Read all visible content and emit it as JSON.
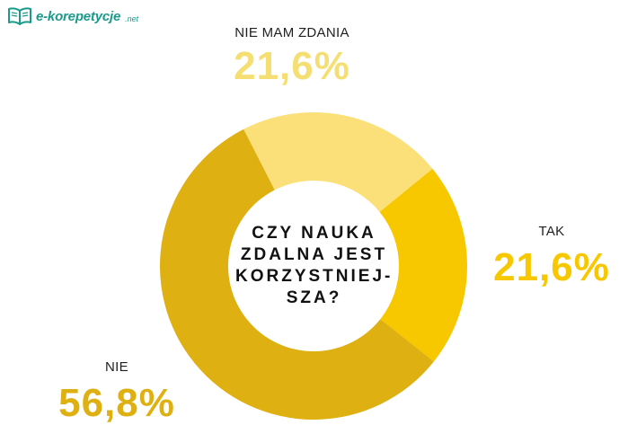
{
  "brand": {
    "name": "e-korepetycje",
    "suffix": ".net",
    "icon": "open-book-icon",
    "color": "#1a9a8a"
  },
  "center_question": {
    "lines": [
      "CZY NAUKA",
      "ZDALNA JEST",
      "KORZYSTNIEJ-",
      "SZA?"
    ]
  },
  "chart_data": {
    "type": "pie",
    "donut": true,
    "title": "CZY NAUKA ZDALNA JEST KORZYSTNIEJSZA?",
    "slices": [
      {
        "label": "TAK",
        "value": 21.6,
        "display": "21,6%",
        "color": "#f7c800",
        "text_color": "#f7c800"
      },
      {
        "label": "NIE",
        "value": 56.8,
        "display": "56,8%",
        "color": "#deb012",
        "text_color": "#deb012"
      },
      {
        "label": "NIE MAM ZDANIA",
        "value": 21.6,
        "display": "21,6%",
        "color": "#fbe07a",
        "text_color": "#f6df72"
      }
    ]
  }
}
